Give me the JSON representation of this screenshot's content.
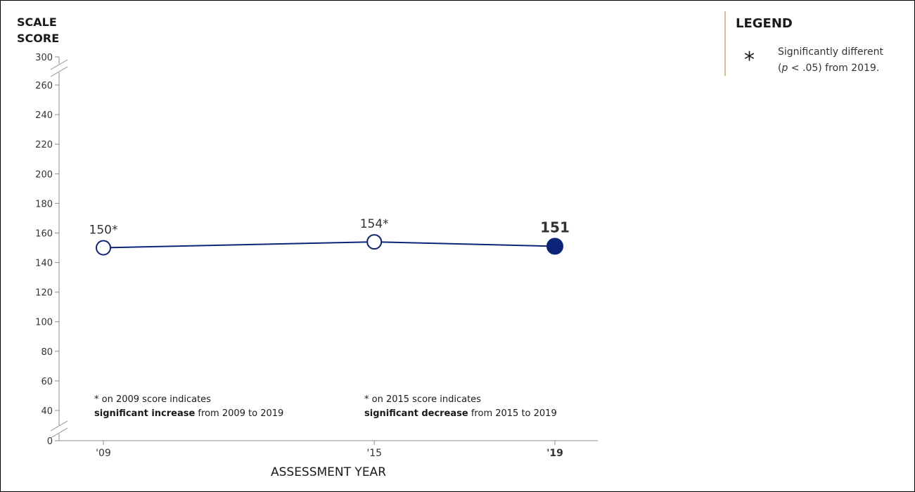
{
  "colors": {
    "series": "#0b2478",
    "axis": "#8c8c8c",
    "legend_border": "#c8a96b",
    "text": "#1a1a1a"
  },
  "chart_data": {
    "type": "line",
    "ylabel_line1": "SCALE",
    "ylabel_line2": "SCORE",
    "xlabel": "ASSESSMENT YEAR",
    "categories": [
      "'09",
      "'15",
      "'19"
    ],
    "x": [
      2009,
      2015,
      2019
    ],
    "values": [
      150,
      154,
      151
    ],
    "data_labels": [
      "150*",
      "154*",
      "151"
    ],
    "significant": [
      true,
      true,
      false
    ],
    "y_ticks": [
      0,
      40,
      60,
      80,
      100,
      120,
      140,
      160,
      180,
      200,
      220,
      240,
      260,
      300
    ],
    "y_break_ranges": [
      [
        0,
        40
      ],
      [
        260,
        300
      ]
    ],
    "ylim": [
      0,
      300
    ],
    "grid": false,
    "notes": [
      {
        "line1": "* on 2009 score indicates",
        "bold": "significant increase",
        "rest": " from 2009 to 2019"
      },
      {
        "line1": "* on 2015 score indicates",
        "bold": "significant decrease",
        "rest": " from 2015 to 2019"
      }
    ]
  },
  "legend": {
    "title": "LEGEND",
    "symbol": "*",
    "text_line1": "Significantly different",
    "text_line2_italic": "p",
    "text_line2_rest": " < .05) from 2019.",
    "text_line2_open": "("
  }
}
